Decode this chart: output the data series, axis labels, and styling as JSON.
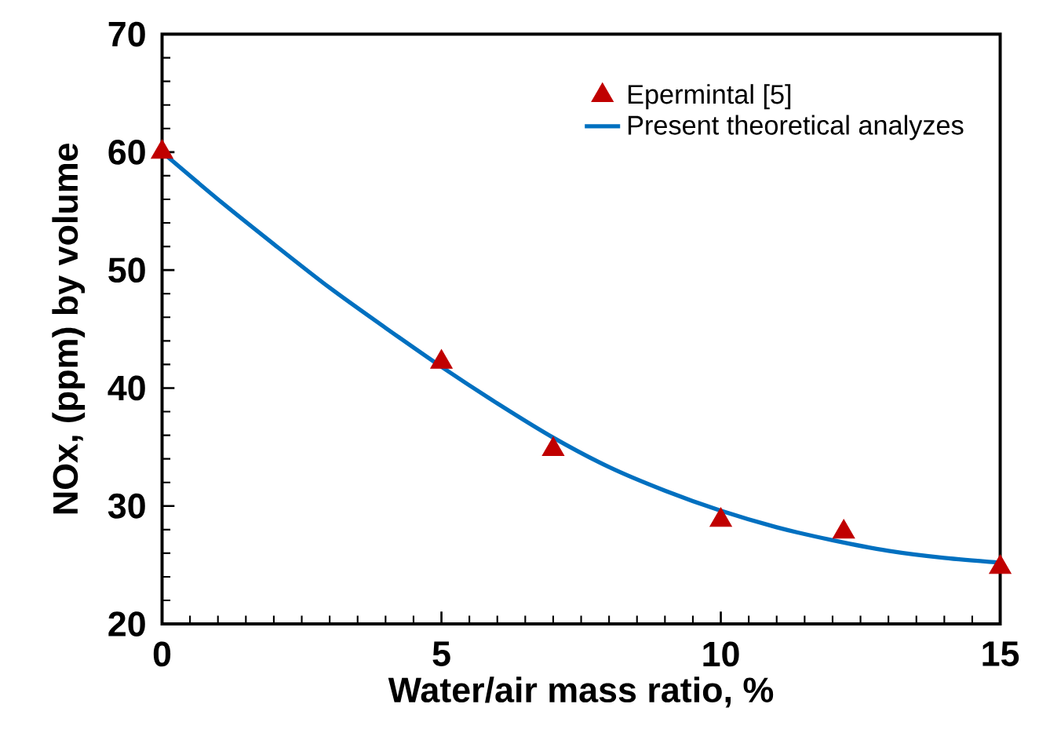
{
  "chart_data": {
    "type": "scatter",
    "xlabel": "Water/air mass ratio, %",
    "ylabel": "NOx, (ppm) by volume",
    "xlim": [
      0,
      15
    ],
    "xticks": [
      0,
      5,
      10,
      15
    ],
    "ylim": [
      20,
      70
    ],
    "yticks": [
      20,
      30,
      40,
      50,
      60,
      70
    ],
    "grid": false,
    "legend": "top right",
    "series": [
      {
        "name": "Epermintal [5]",
        "marker": "triangle",
        "color": "#c00000",
        "x": [
          0,
          5,
          7,
          10,
          12.2,
          15
        ],
        "values": [
          60,
          42.2,
          34.8,
          28.8,
          27.8,
          24.8
        ]
      },
      {
        "name": "Present theoretical analyzes",
        "type": "line",
        "marker": "none",
        "line_style": "solid",
        "color": "#0070c0",
        "x": [
          0,
          1,
          2,
          3,
          4,
          5,
          6,
          7,
          8,
          9,
          10,
          11,
          12,
          13,
          14,
          15
        ],
        "values": [
          60,
          56.0,
          52.2,
          48.5,
          45.1,
          41.8,
          38.7,
          35.8,
          33.3,
          31.3,
          29.6,
          28.2,
          27.1,
          26.2,
          25.6,
          25.2
        ]
      }
    ]
  }
}
